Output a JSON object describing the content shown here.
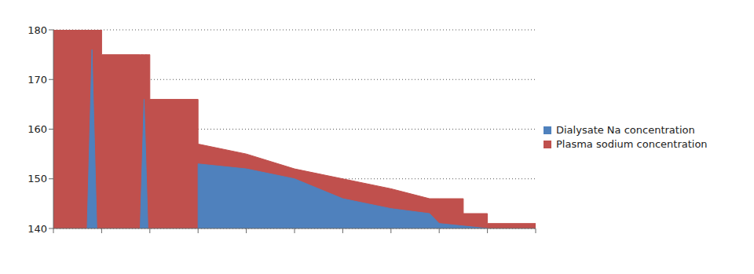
{
  "chart_data": {
    "type": "area",
    "x": [
      0,
      0.7,
      0.8,
      0.9,
      1,
      1,
      1.8,
      1.88,
      1.96,
      2,
      2,
      3,
      3,
      4,
      5,
      6,
      7,
      7.8,
      8,
      8.5,
      8.5,
      9,
      9,
      10
    ],
    "series": [
      {
        "name": "Dialysate Na concentration",
        "color": "#4f81bd",
        "values": [
          null,
          140,
          176,
          140,
          null,
          null,
          140,
          166,
          140,
          null,
          null,
          140,
          153,
          152,
          150,
          146,
          144,
          143,
          141,
          140.5,
          140.5,
          140,
          null,
          null
        ]
      },
      {
        "name": "Plasma sodium concentration",
        "color": "#c0504d",
        "values": [
          180,
          180,
          180,
          180,
          180,
          175,
          175,
          175,
          175,
          175,
          166,
          166,
          157,
          155,
          152,
          150,
          148,
          146,
          146,
          146,
          143,
          143,
          141,
          141
        ]
      }
    ],
    "xlim": [
      0,
      10
    ],
    "xticks": [
      0,
      1,
      2,
      3,
      4,
      5,
      6,
      7,
      8,
      9,
      10
    ],
    "ylim": [
      140,
      180
    ],
    "yticks": [
      140,
      150,
      160,
      170,
      180
    ],
    "tick_labels": "y",
    "grid": true,
    "legend": "right"
  }
}
